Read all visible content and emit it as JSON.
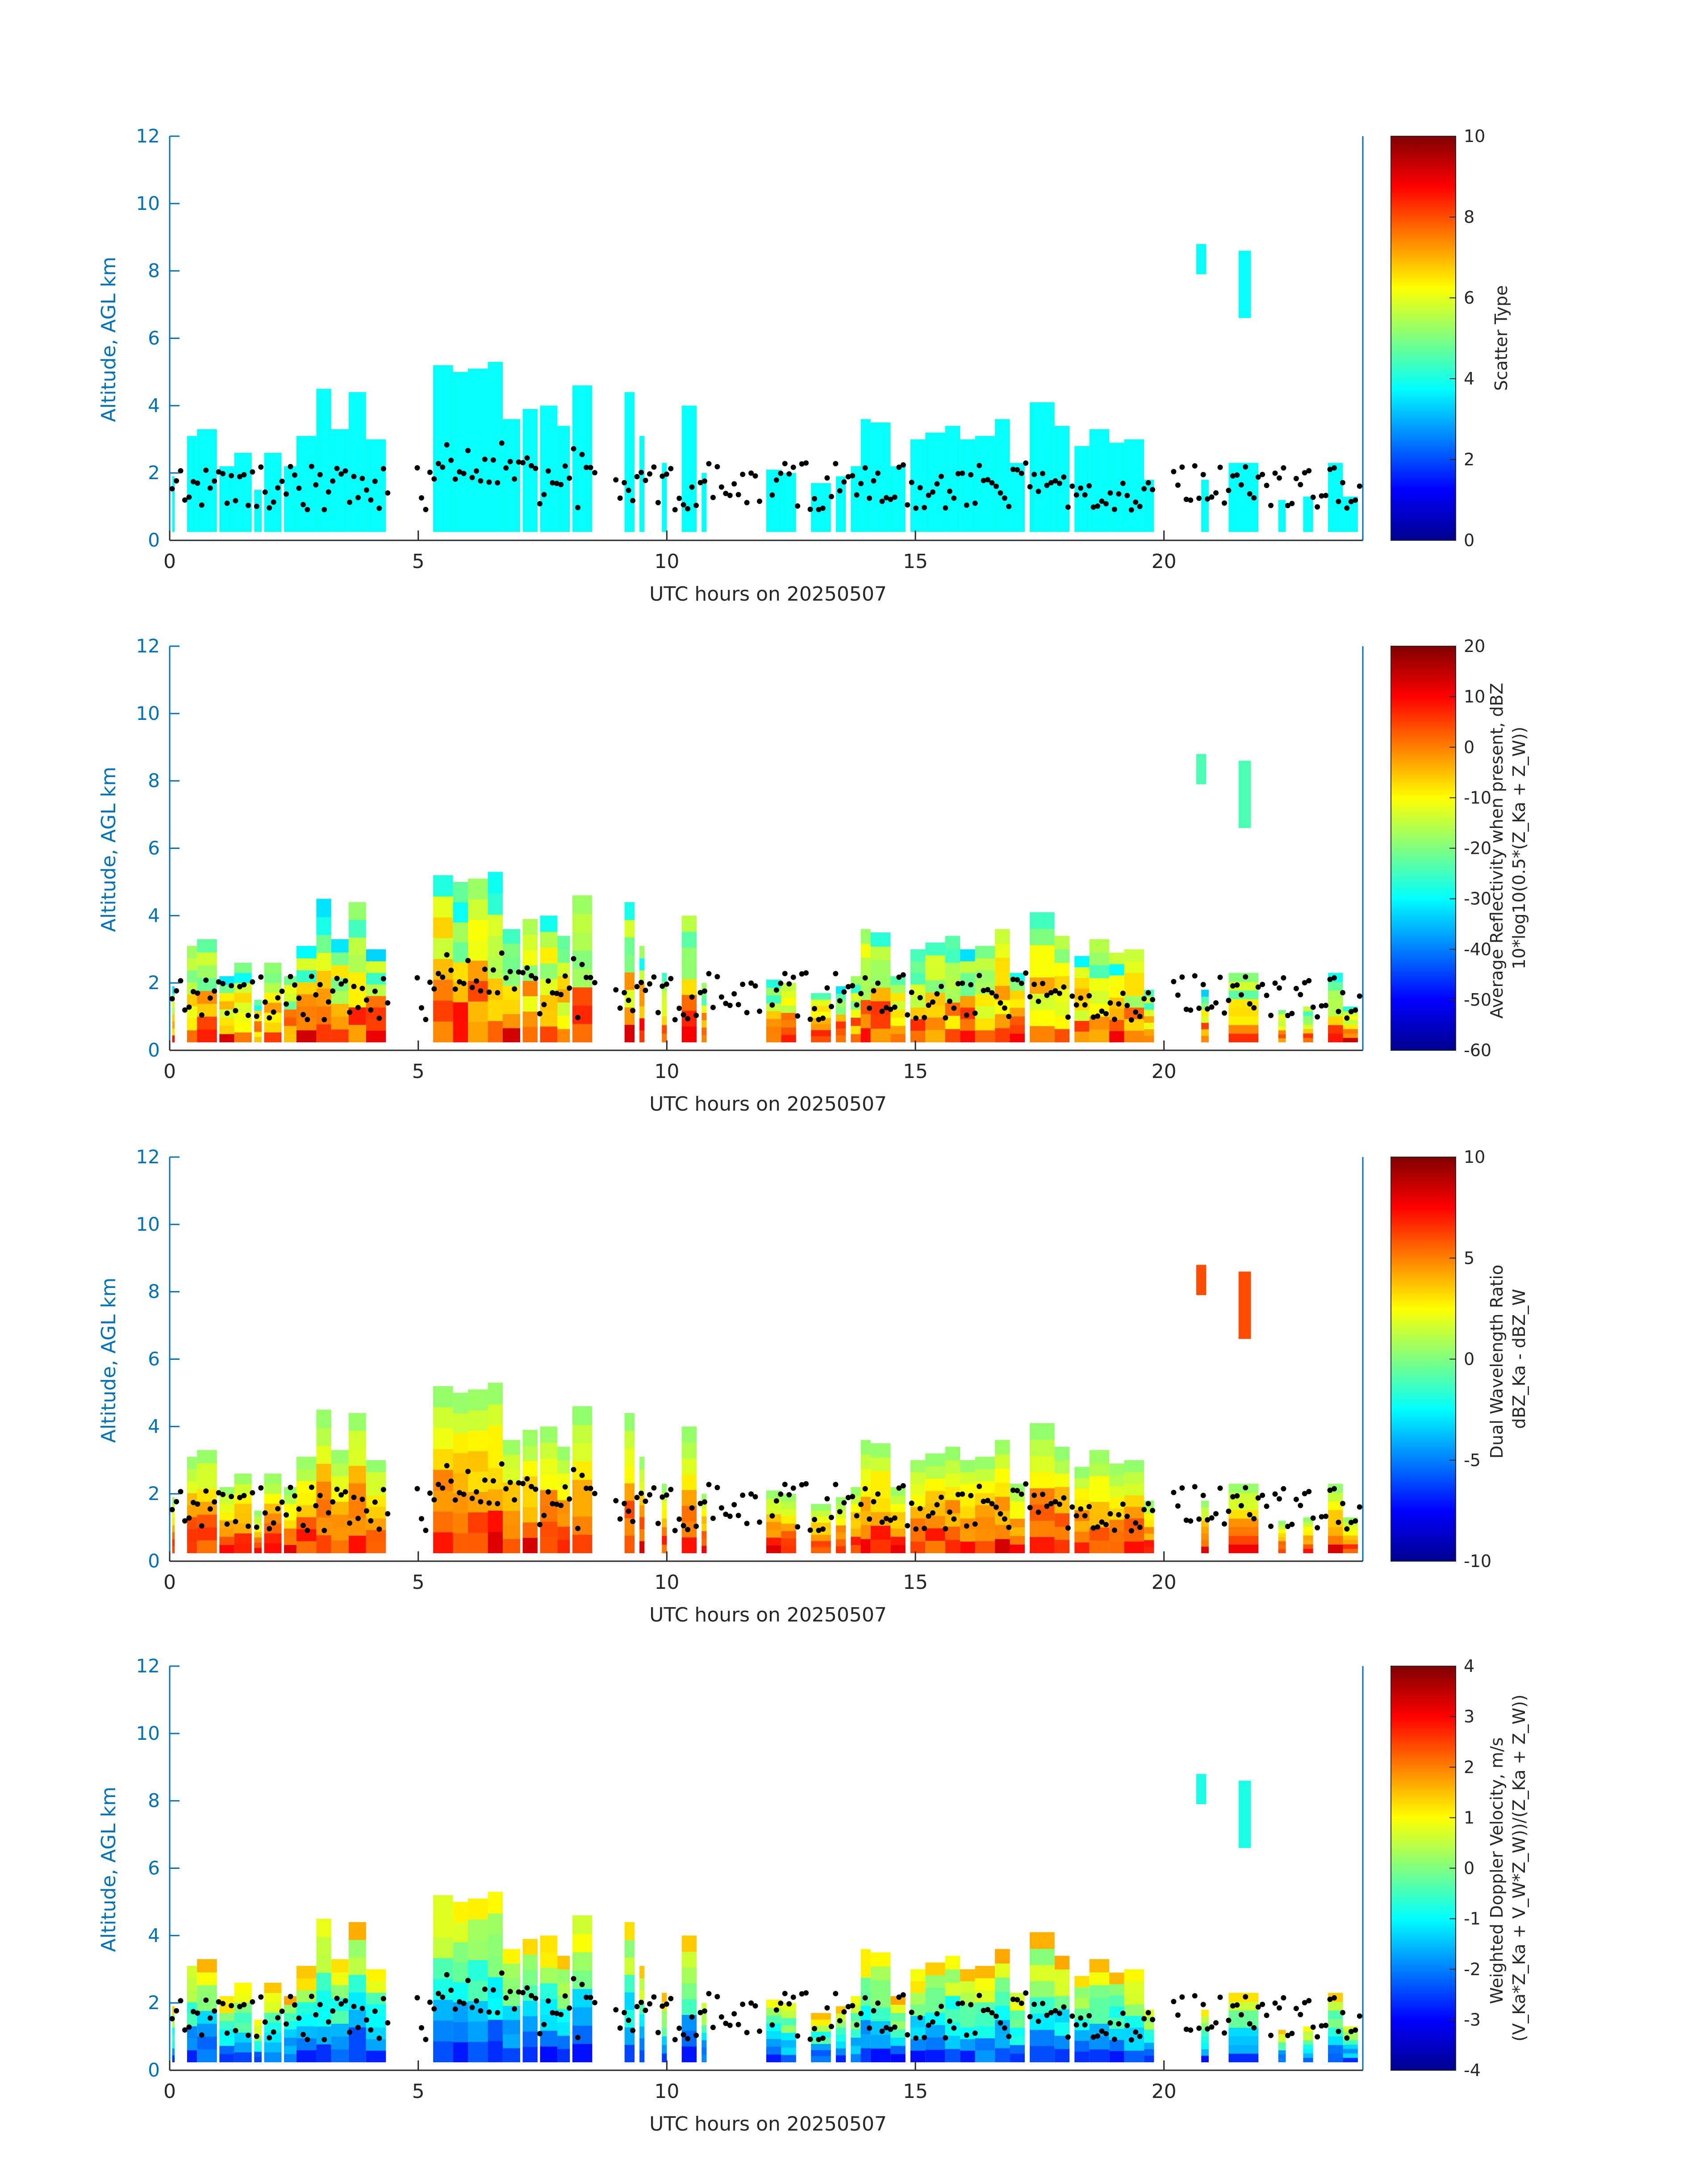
{
  "date": "20250507",
  "chart_data": [
    {
      "type": "heatmap",
      "xlabel": "UTC hours on 20250507",
      "ylabel": "Altitude, AGL km",
      "xlim": [
        0,
        24
      ],
      "ylim": [
        0,
        12
      ],
      "xticks": [
        0,
        5,
        10,
        15,
        20
      ],
      "yticks": [
        0,
        2,
        4,
        6,
        8,
        10,
        12
      ],
      "colorbar": {
        "label_lines": [
          "Scatter Type"
        ],
        "range": [
          0,
          10
        ],
        "ticks": [
          0,
          2,
          4,
          6,
          8,
          10
        ],
        "colormap": "jet"
      },
      "field_value": 3.8,
      "overlay": "cloud base points (black)"
    },
    {
      "type": "heatmap",
      "xlabel": "UTC hours on 20250507",
      "ylabel": "Altitude, AGL km",
      "xlim": [
        0,
        24
      ],
      "ylim": [
        0,
        12
      ],
      "xticks": [
        0,
        5,
        10,
        15,
        20
      ],
      "yticks": [
        0,
        2,
        4,
        6,
        8,
        10,
        12
      ],
      "colorbar": {
        "label_lines": [
          "Average Reflectivity when present, dBZ",
          "10*log10(0.5*(Z_Ka + Z_W))"
        ],
        "range": [
          -60,
          20
        ],
        "ticks": [
          -60,
          -50,
          -40,
          -30,
          -20,
          -10,
          0,
          10,
          20
        ],
        "colormap": "jet"
      },
      "overlay": "cloud base points (black)"
    },
    {
      "type": "heatmap",
      "xlabel": "UTC hours on 20250507",
      "ylabel": "Altitude, AGL km",
      "xlim": [
        0,
        24
      ],
      "ylim": [
        0,
        12
      ],
      "xticks": [
        0,
        5,
        10,
        15,
        20
      ],
      "yticks": [
        0,
        2,
        4,
        6,
        8,
        10,
        12
      ],
      "colorbar": {
        "label_lines": [
          "Dual Wavelength Ratio",
          "dBZ_Ka - dBZ_W"
        ],
        "range": [
          -10,
          10
        ],
        "ticks": [
          -10,
          -5,
          0,
          5,
          10
        ],
        "colormap": "jet"
      },
      "overlay": "cloud base points (black)"
    },
    {
      "type": "heatmap",
      "xlabel": "UTC hours on 20250507",
      "ylabel": "Altitude, AGL km",
      "xlim": [
        0,
        24
      ],
      "ylim": [
        0,
        12
      ],
      "xticks": [
        0,
        5,
        10,
        15,
        20
      ],
      "yticks": [
        0,
        2,
        4,
        6,
        8,
        10,
        12
      ],
      "colorbar": {
        "label_lines": [
          "Weighted Doppler Velocity, m/s",
          "(V_Ka*Z_Ka + V_W*Z_W))/(Z_Ka + Z_W))"
        ],
        "range": [
          -4,
          4
        ],
        "ticks": [
          -4,
          -3,
          -2,
          -1,
          0,
          1,
          2,
          3,
          4
        ],
        "colormap": "jet"
      },
      "overlay": "cloud base points (black)"
    }
  ],
  "cloud_columns": [
    [
      0.05,
      0.1,
      1.9
    ],
    [
      0.35,
      0.55,
      3.1
    ],
    [
      0.55,
      0.95,
      3.3
    ],
    [
      1.0,
      1.3,
      2.2
    ],
    [
      1.3,
      1.65,
      2.6
    ],
    [
      1.7,
      1.85,
      1.5
    ],
    [
      1.9,
      2.25,
      2.6
    ],
    [
      2.3,
      2.55,
      2.2
    ],
    [
      2.55,
      2.95,
      3.1
    ],
    [
      2.95,
      3.25,
      4.5
    ],
    [
      3.25,
      3.6,
      3.3
    ],
    [
      3.6,
      3.95,
      4.4
    ],
    [
      3.95,
      4.35,
      3.0
    ],
    [
      5.3,
      5.7,
      5.2
    ],
    [
      5.7,
      6.0,
      5.0
    ],
    [
      6.0,
      6.4,
      5.1
    ],
    [
      6.4,
      6.7,
      5.3
    ],
    [
      6.7,
      7.05,
      3.6
    ],
    [
      7.1,
      7.4,
      3.9
    ],
    [
      7.45,
      7.8,
      4.0
    ],
    [
      7.8,
      8.05,
      3.4
    ],
    [
      8.1,
      8.5,
      4.6
    ],
    [
      9.15,
      9.35,
      4.4
    ],
    [
      9.45,
      9.55,
      3.1
    ],
    [
      9.9,
      10.0,
      2.3
    ],
    [
      10.3,
      10.6,
      4.0
    ],
    [
      10.7,
      10.8,
      2.0
    ],
    [
      12.0,
      12.3,
      2.1
    ],
    [
      12.3,
      12.6,
      2.0
    ],
    [
      12.9,
      13.3,
      1.7
    ],
    [
      13.4,
      13.6,
      1.9
    ],
    [
      13.7,
      13.9,
      2.2
    ],
    [
      13.9,
      14.1,
      3.6
    ],
    [
      14.1,
      14.5,
      3.5
    ],
    [
      14.5,
      14.8,
      2.2
    ],
    [
      14.9,
      15.2,
      3.0
    ],
    [
      15.2,
      15.6,
      3.2
    ],
    [
      15.6,
      15.9,
      3.4
    ],
    [
      15.9,
      16.2,
      3.0
    ],
    [
      16.2,
      16.6,
      3.1
    ],
    [
      16.6,
      16.9,
      3.6
    ],
    [
      16.9,
      17.2,
      2.3
    ],
    [
      17.3,
      17.8,
      4.1
    ],
    [
      17.8,
      18.1,
      3.4
    ],
    [
      18.2,
      18.5,
      2.8
    ],
    [
      18.5,
      18.9,
      3.3
    ],
    [
      18.9,
      19.2,
      2.9
    ],
    [
      19.2,
      19.6,
      3.0
    ],
    [
      19.6,
      19.8,
      1.8
    ],
    [
      20.75,
      20.9,
      1.8
    ],
    [
      21.3,
      21.9,
      2.3
    ],
    [
      22.3,
      22.45,
      1.2
    ],
    [
      22.8,
      23.0,
      1.3
    ],
    [
      23.3,
      23.6,
      2.3
    ],
    [
      23.6,
      23.9,
      1.3
    ]
  ],
  "high_cloud_patches": [
    [
      20.65,
      20.85,
      7.9,
      8.8
    ],
    [
      21.5,
      21.75,
      6.6,
      8.6
    ]
  ]
}
